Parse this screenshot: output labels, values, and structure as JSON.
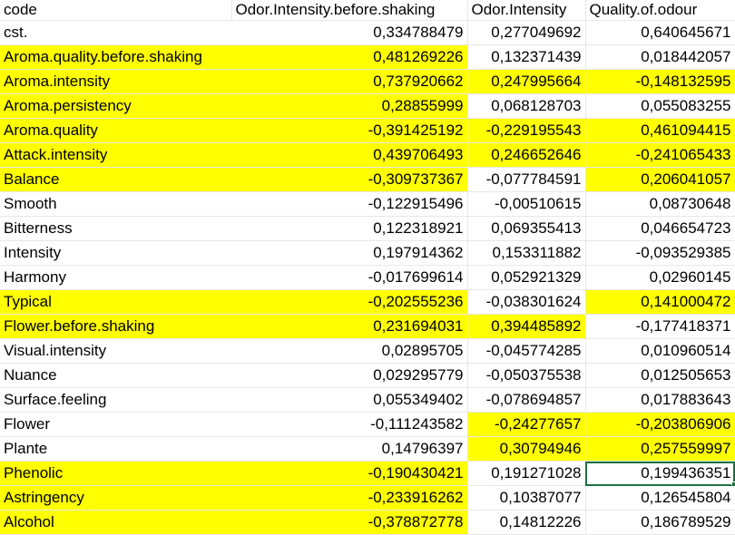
{
  "colors": {
    "highlight": "#ffff00",
    "selection": "#1d6f42",
    "gridline": "#e7e7e7"
  },
  "headers": [
    "code",
    "Odor.Intensity.before.shaking",
    "Odor.Intensity",
    "Quality.of.odour"
  ],
  "selected_cell": {
    "row": 18,
    "col": 3
  },
  "rows": [
    {
      "label": "cst.",
      "values": [
        "0,334788479",
        "0,277049692",
        "0,640645671"
      ],
      "hl": [
        false,
        false,
        false,
        false
      ]
    },
    {
      "label": "Aroma.quality.before.shaking",
      "values": [
        "0,481269226",
        "0,132371439",
        "0,018442057"
      ],
      "hl": [
        true,
        true,
        false,
        false
      ]
    },
    {
      "label": "Aroma.intensity",
      "values": [
        "0,737920662",
        "0,247995664",
        "-0,148132595"
      ],
      "hl": [
        true,
        true,
        true,
        true
      ]
    },
    {
      "label": "Aroma.persistency",
      "values": [
        "0,28855999",
        "0,068128703",
        "0,055083255"
      ],
      "hl": [
        true,
        true,
        false,
        false
      ]
    },
    {
      "label": "Aroma.quality",
      "values": [
        "-0,391425192",
        "-0,229195543",
        "0,461094415"
      ],
      "hl": [
        true,
        true,
        true,
        true
      ]
    },
    {
      "label": "Attack.intensity",
      "values": [
        "0,439706493",
        "0,246652646",
        "-0,241065433"
      ],
      "hl": [
        true,
        true,
        true,
        true
      ]
    },
    {
      "label": "Balance",
      "values": [
        "-0,309737367",
        "-0,077784591",
        "0,206041057"
      ],
      "hl": [
        true,
        true,
        false,
        true
      ]
    },
    {
      "label": "Smooth",
      "values": [
        "-0,122915496",
        "-0,00510615",
        "0,08730648"
      ],
      "hl": [
        false,
        false,
        false,
        false
      ]
    },
    {
      "label": "Bitterness",
      "values": [
        "0,122318921",
        "0,069355413",
        "0,046654723"
      ],
      "hl": [
        false,
        false,
        false,
        false
      ]
    },
    {
      "label": "Intensity",
      "values": [
        "0,197914362",
        "0,153311882",
        "-0,093529385"
      ],
      "hl": [
        false,
        false,
        false,
        false
      ]
    },
    {
      "label": "Harmony",
      "values": [
        "-0,017699614",
        "0,052921329",
        "0,02960145"
      ],
      "hl": [
        false,
        false,
        false,
        false
      ]
    },
    {
      "label": "Typical",
      "values": [
        "-0,202555236",
        "-0,038301624",
        "0,141000472"
      ],
      "hl": [
        true,
        true,
        false,
        true
      ]
    },
    {
      "label": "Flower.before.shaking",
      "values": [
        "0,231694031",
        "0,394485892",
        "-0,177418371"
      ],
      "hl": [
        true,
        true,
        true,
        false
      ]
    },
    {
      "label": "Visual.intensity",
      "values": [
        "0,02895705",
        "-0,045774285",
        "0,010960514"
      ],
      "hl": [
        false,
        false,
        false,
        false
      ]
    },
    {
      "label": "Nuance",
      "values": [
        "0,029295779",
        "-0,050375538",
        "0,012505653"
      ],
      "hl": [
        false,
        false,
        false,
        false
      ]
    },
    {
      "label": "Surface.feeling",
      "values": [
        "0,055349402",
        "-0,078694857",
        "0,017883643"
      ],
      "hl": [
        false,
        false,
        false,
        false
      ]
    },
    {
      "label": "Flower",
      "values": [
        "-0,111243582",
        "-0,24277657",
        "-0,203806906"
      ],
      "hl": [
        false,
        false,
        true,
        true
      ]
    },
    {
      "label": "Plante",
      "values": [
        "0,14796397",
        "0,30794946",
        "0,257559997"
      ],
      "hl": [
        false,
        false,
        true,
        true
      ]
    },
    {
      "label": "Phenolic",
      "values": [
        "-0,190430421",
        "0,191271028",
        "0,199436351"
      ],
      "hl": [
        true,
        true,
        false,
        false
      ]
    },
    {
      "label": "Astringency",
      "values": [
        "-0,233916262",
        "0,10387077",
        "0,126545804"
      ],
      "hl": [
        true,
        true,
        false,
        false
      ]
    },
    {
      "label": "Alcohol",
      "values": [
        "-0,378872778",
        "0,14812226",
        "0,186789529"
      ],
      "hl": [
        true,
        true,
        false,
        false
      ]
    }
  ]
}
